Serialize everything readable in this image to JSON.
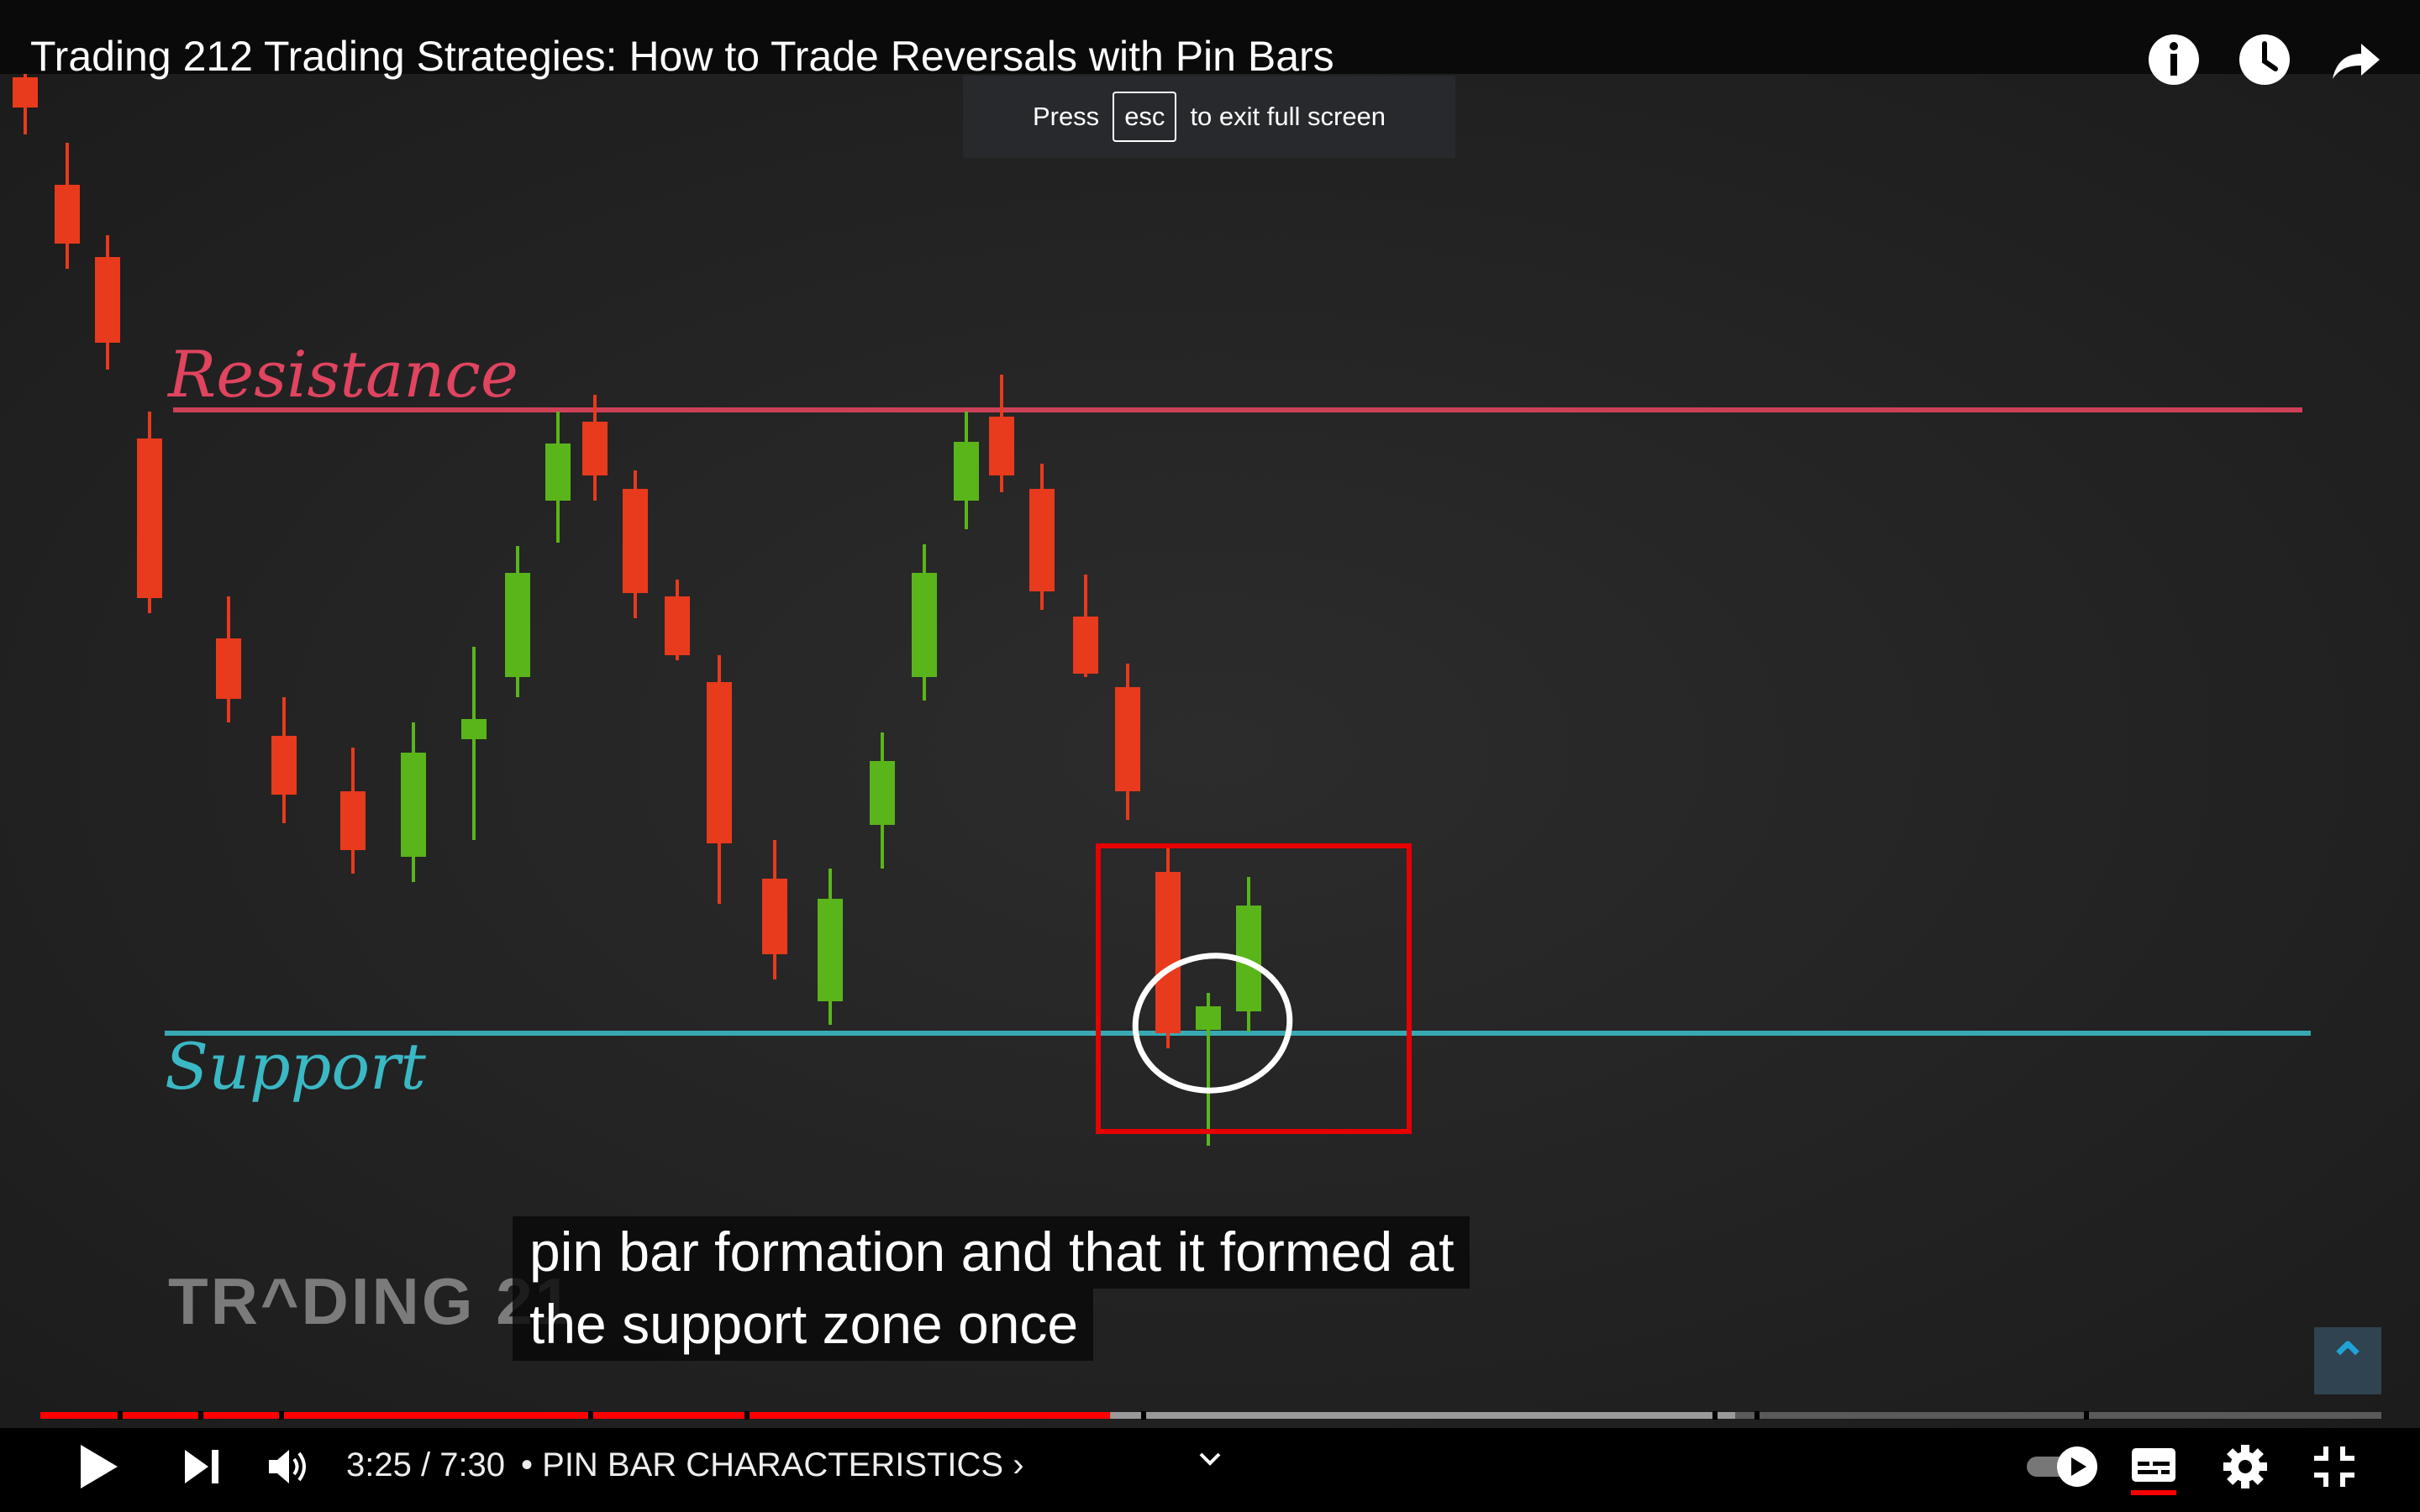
{
  "video": {
    "title": "Trading 212 Trading Strategies: How to Trade Reversals with Pin Bars",
    "esc_tip": {
      "prefix": "Press",
      "key": "esc",
      "suffix": "to exit full screen"
    },
    "board": {
      "resistance_label": "Resistance",
      "support_label": "Support",
      "watermark": "TR^DING 21",
      "colors": {
        "resistance": "#e0445e",
        "support": "#3ab8c4",
        "bull": "#5ab51b",
        "bear": "#e83a1c",
        "highlight_box": "#e60000",
        "circle": "#ffffff"
      }
    },
    "caption": {
      "line1": "pin bar formation and that it formed at",
      "line2": "the support zone once"
    },
    "fab_icon": "caret-up-icon"
  },
  "player": {
    "time": "3:25 / 7:30",
    "chapter_sep": "•",
    "chapter": "PIN BAR CHARACTERISTICS",
    "chapter_chevron": "›",
    "progress_percent": 45.7,
    "buffered_percent": 72.4,
    "colors": {
      "played": "#ff0000",
      "buffered": "#9a9a9a",
      "track": "#5a5a5a"
    },
    "icons": [
      "info-icon",
      "watch-later-icon",
      "share-icon",
      "play-icon",
      "next-icon",
      "volume-icon",
      "chevron-down-icon",
      "autoplay-toggle-icon",
      "subtitles-icon",
      "settings-icon",
      "exit-fullscreen-icon"
    ]
  }
}
